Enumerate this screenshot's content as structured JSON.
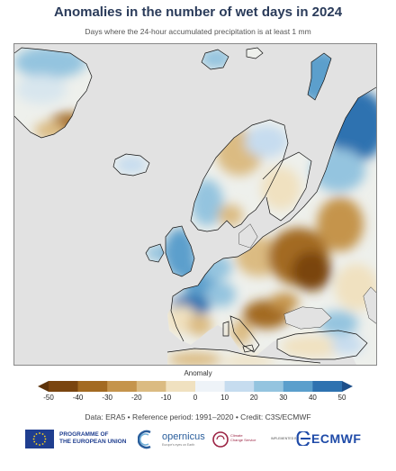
{
  "header": {
    "title": "Anomalies in the number of wet days in 2024",
    "subtitle": "Days where the 24-hour accumulated precipitation is at least 1 mm"
  },
  "map": {
    "region": "Europe",
    "projection": "Lambert conformal",
    "background_color": "#e2e2e2",
    "coastline_color": "#111111"
  },
  "legend": {
    "title": "Anomaly",
    "ticks": [
      "-50",
      "-40",
      "-30",
      "-20",
      "-10",
      "0",
      "10",
      "20",
      "30",
      "40",
      "50"
    ],
    "colors": [
      "#7a4510",
      "#a36a21",
      "#c5944c",
      "#dbbb82",
      "#f0e1c0",
      "#eef3f8",
      "#c6dcef",
      "#94c4df",
      "#5b9fcc",
      "#2e72b0"
    ],
    "extend_low_color": "#5e340a",
    "extend_high_color": "#1d4f8a"
  },
  "credit": "Data: ERA5 • Reference period: 1991–2020 • Credit: C3S/ECMWF",
  "logos": {
    "eu_line1": "PROGRAMME OF",
    "eu_line2": "THE EUROPEAN UNION",
    "copernicus": "opernicus",
    "copernicus_sub": "Europe's eyes on Earth",
    "c3s_line1": "Climate",
    "c3s_line2": "Change Service",
    "implemented": "IMPLEMENTED BY",
    "ecmwf": "ECMWF"
  }
}
